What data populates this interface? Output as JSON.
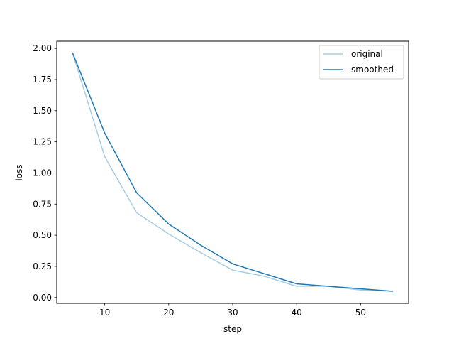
{
  "chart_data": {
    "type": "line",
    "title": "",
    "xlabel": "step",
    "ylabel": "loss",
    "xlim": [
      2.5,
      57.5
    ],
    "ylim": [
      -0.047,
      2.058
    ],
    "xticks": [
      10,
      20,
      30,
      40,
      50
    ],
    "yticks": [
      0.0,
      0.25,
      0.5,
      0.75,
      1.0,
      1.25,
      1.5,
      1.75,
      2.0
    ],
    "ytick_labels": [
      "0.00",
      "0.25",
      "0.50",
      "0.75",
      "1.00",
      "1.25",
      "1.50",
      "1.75",
      "2.00"
    ],
    "grid": false,
    "legend_position": "top-right",
    "x": [
      5,
      10,
      15,
      20,
      25,
      30,
      35,
      40,
      45,
      50,
      55
    ],
    "series": [
      {
        "name": "original",
        "color": "#a6cee3",
        "values": [
          1.96,
          1.13,
          0.68,
          0.51,
          0.36,
          0.22,
          0.17,
          0.09,
          0.09,
          0.06,
          0.05
        ]
      },
      {
        "name": "smoothed",
        "color": "#1f78b4",
        "values": [
          1.96,
          1.32,
          0.84,
          0.59,
          0.42,
          0.27,
          0.19,
          0.11,
          0.09,
          0.07,
          0.05
        ]
      }
    ]
  }
}
